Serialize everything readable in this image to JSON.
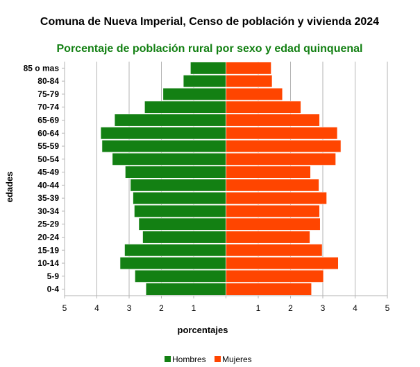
{
  "chart_data": {
    "type": "bar",
    "orientation": "horizontal-pyramid",
    "title": "Comuna de Nueva Imperial, Censo de población y vivienda 2024",
    "subtitle": "Porcentaje de población rural por sexo y edad quinquenal",
    "xlabel": "porcentajes",
    "ylabel": "edades",
    "xlim": [
      -5,
      5
    ],
    "x_ticks": [
      -5,
      -4,
      -3,
      -2,
      -1,
      0,
      1,
      2,
      3,
      4,
      5
    ],
    "x_tick_labels": [
      "5",
      "4",
      "3",
      "2",
      "1",
      "",
      "1",
      "2",
      "3",
      "4",
      "5"
    ],
    "grid": "vertical",
    "legend_position": "bottom",
    "categories": [
      "0-4",
      "5-9",
      "10-14",
      "15-19",
      "20-24",
      "25-29",
      "30-34",
      "35-39",
      "40-44",
      "45-49",
      "50-54",
      "55-59",
      "60-64",
      "65-69",
      "70-74",
      "75-79",
      "80-84",
      "85 o mas"
    ],
    "series": [
      {
        "name": "Hombres",
        "color": "#138013",
        "values": [
          2.48,
          2.82,
          3.28,
          3.14,
          2.58,
          2.7,
          2.84,
          2.88,
          2.96,
          3.12,
          3.52,
          3.84,
          3.88,
          3.45,
          2.52,
          1.95,
          1.32,
          1.1
        ]
      },
      {
        "name": "Mujeres",
        "color": "#ff4500",
        "values": [
          2.65,
          3.02,
          3.48,
          2.98,
          2.6,
          2.92,
          2.9,
          3.12,
          2.88,
          2.62,
          3.4,
          3.56,
          3.45,
          2.9,
          2.32,
          1.75,
          1.43,
          1.4
        ]
      }
    ]
  }
}
